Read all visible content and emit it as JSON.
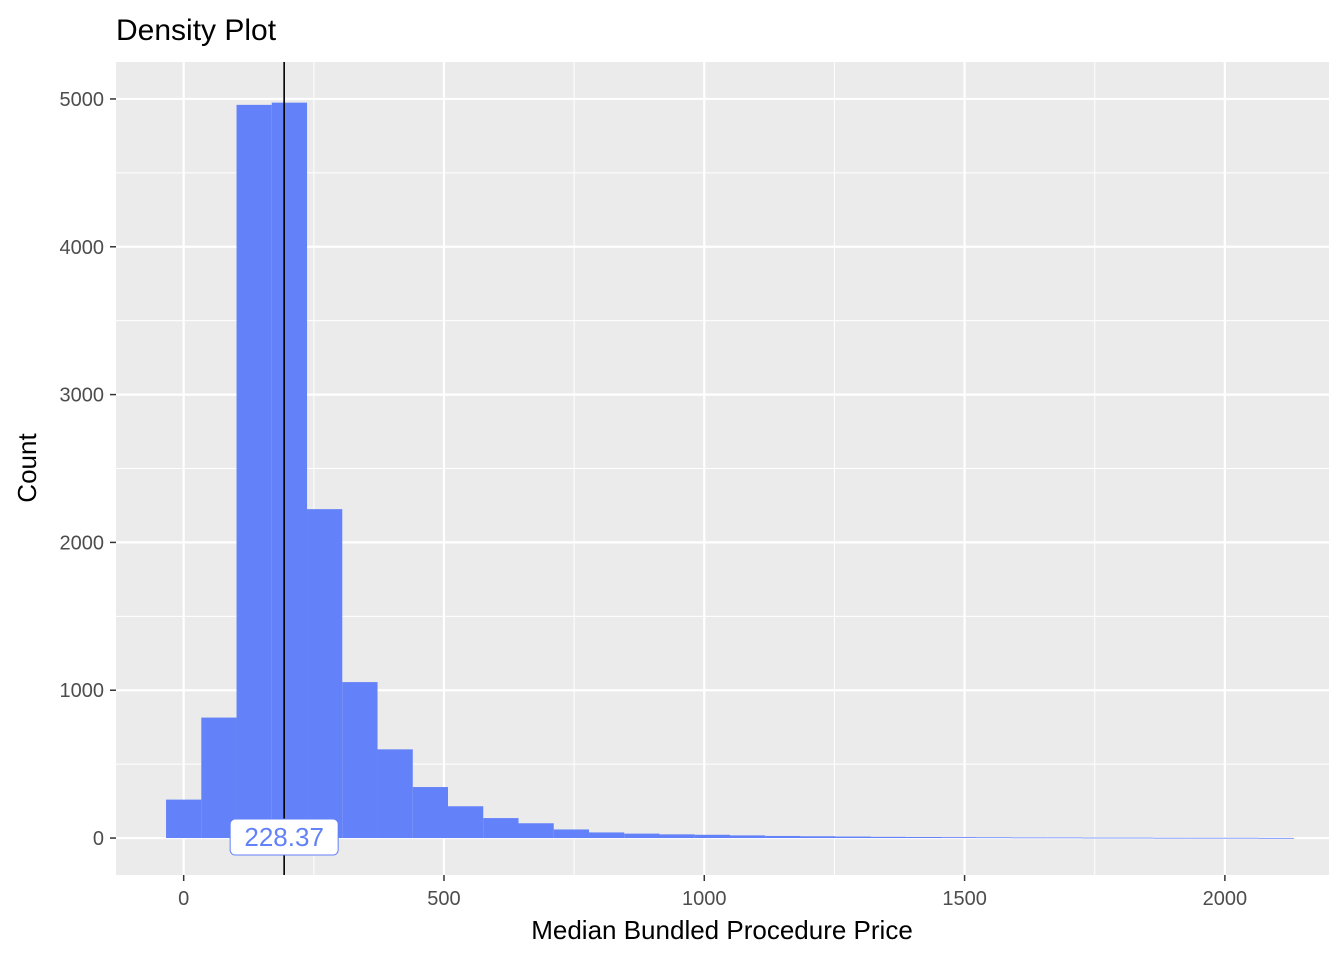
{
  "chart_data": {
    "type": "bar",
    "title": "Density Plot",
    "xlabel": "Median Bundled Procedure Price",
    "ylabel": "Count",
    "bin_width": 67.7,
    "bin_start": -33.85,
    "counts": [
      260,
      815,
      4960,
      4975,
      2225,
      1055,
      600,
      345,
      215,
      135,
      100,
      58,
      38,
      30,
      25,
      22,
      18,
      14,
      12,
      10,
      8,
      7,
      6,
      5,
      4,
      4,
      3,
      3,
      2,
      2,
      2,
      1
    ],
    "xlim": [
      -130,
      2200
    ],
    "ylim": [
      -250,
      5250
    ],
    "x_ticks": [
      0,
      500,
      1000,
      1500,
      2000
    ],
    "x_tick_labels": [
      "0",
      "500",
      "1000",
      "1500",
      "2000"
    ],
    "y_ticks": [
      0,
      1000,
      2000,
      3000,
      4000,
      5000
    ],
    "y_tick_labels": [
      "0",
      "1000",
      "2000",
      "3000",
      "4000",
      "5000"
    ],
    "vline": {
      "x": 193
    },
    "annotation": {
      "text": "228.37",
      "x": 193,
      "y": 0
    },
    "grid": true,
    "bar_color": "#6381f8",
    "panel_color": "#ebebeb",
    "annotation_color": "#6381f8"
  }
}
